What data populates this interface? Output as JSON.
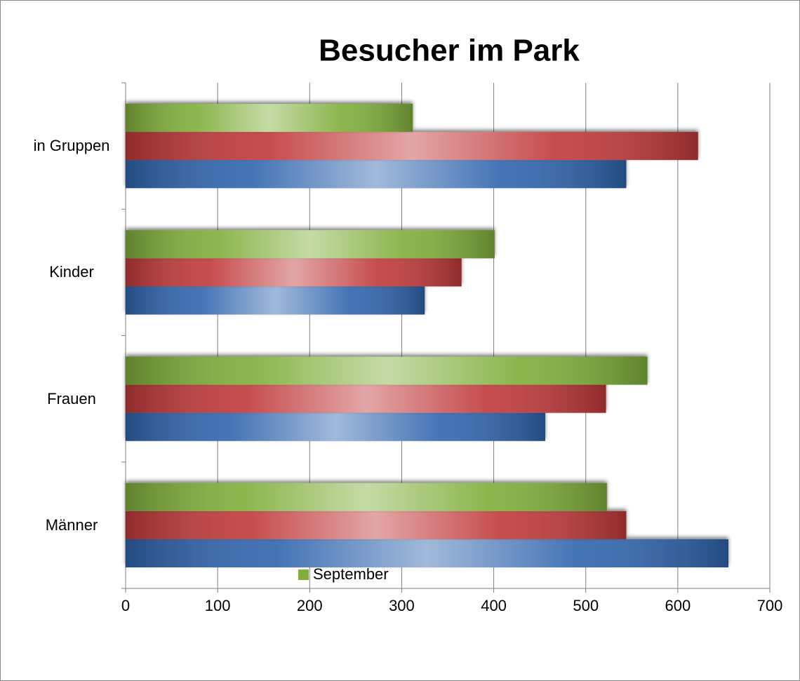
{
  "chart_data": {
    "type": "bar",
    "orientation": "horizontal",
    "title": "Besucher im Park",
    "categories": [
      "Männer",
      "Frauen",
      "Kinder",
      "in Gruppen"
    ],
    "series": [
      {
        "color": "#2f64ad",
        "values": [
          655,
          456,
          325,
          544
        ]
      },
      {
        "color": "#c0393a",
        "values": [
          544,
          522,
          365,
          622
        ]
      },
      {
        "name": "September",
        "color": "#7fae3a",
        "values": [
          523,
          567,
          401,
          312
        ]
      }
    ],
    "xlim": [
      0,
      700
    ],
    "xticks": [
      0,
      100,
      200,
      300,
      400,
      500,
      600,
      700
    ],
    "grid": true
  }
}
